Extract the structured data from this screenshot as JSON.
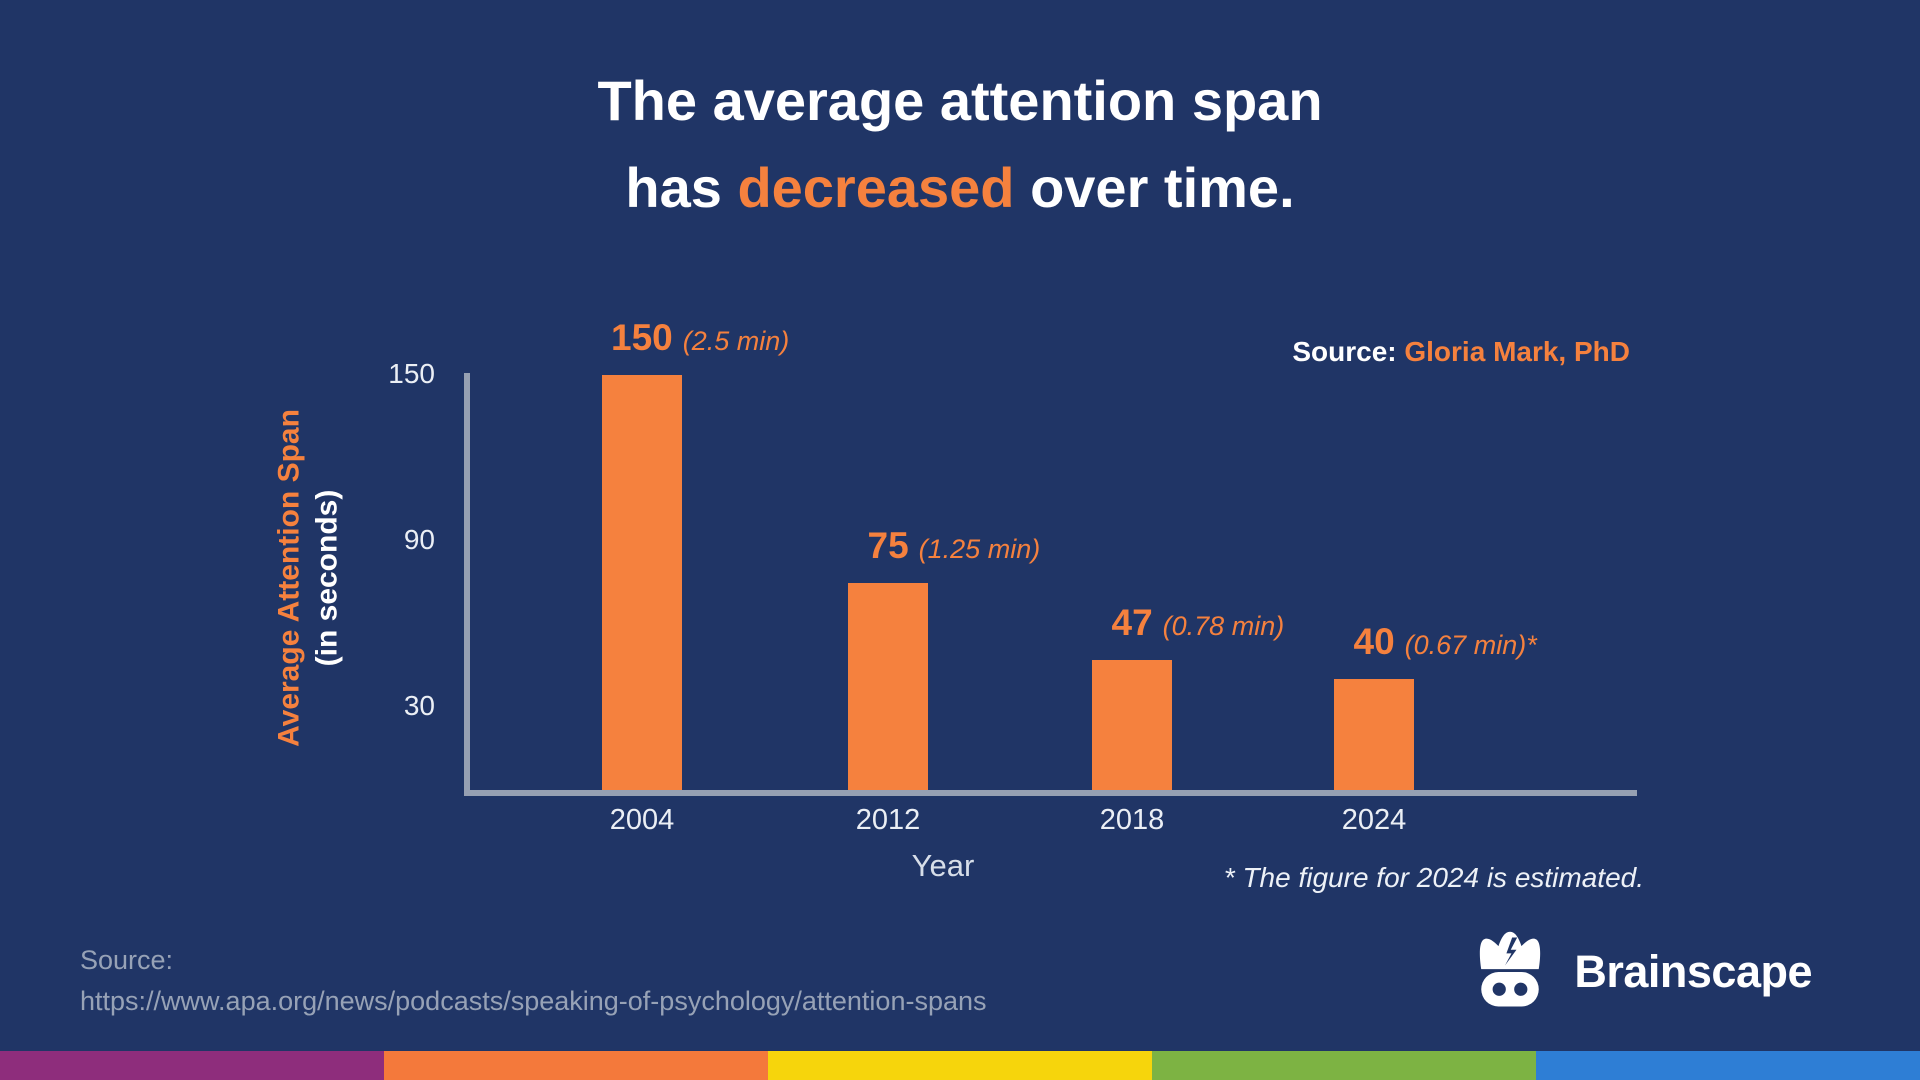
{
  "header": {
    "line1": "The average attention span",
    "line2_prefix": "has ",
    "line2_highlight": "decreased",
    "line2_suffix": " over time."
  },
  "source_credit": {
    "label": "Source:",
    "name": "Gloria Mark, PhD"
  },
  "chart_data": {
    "type": "bar",
    "categories": [
      "2004",
      "2012",
      "2018",
      "2024"
    ],
    "values": [
      150,
      75,
      47,
      40
    ],
    "value_labels": [
      "150",
      "75",
      "47",
      "40"
    ],
    "value_notes": [
      "(2.5 min)",
      "(1.25 min)",
      "(0.78 min)",
      "(0.67 min)*"
    ],
    "xlabel": "Year",
    "ylabel_main": "Average Attention Span",
    "ylabel_sub": "(in seconds)",
    "yticks": [
      150,
      90,
      30
    ],
    "ylim": [
      0,
      150
    ],
    "grid": false,
    "legend": false,
    "bar_color": "#F5813E",
    "axis_color": "#96A0B2"
  },
  "footnote": "* The figure for 2024 is estimated.",
  "bottom_source": {
    "label": "Source:",
    "url": "https://www.apa.org/news/podcasts/speaking-of-psychology/attention-spans"
  },
  "brand": {
    "name": "Brainscape"
  },
  "colors": {
    "background": "#203566",
    "accent_orange": "#F5813E",
    "stripe": [
      "#8E2D7C",
      "#F4793B",
      "#F6D50C",
      "#7DB343",
      "#2E7ED5"
    ]
  }
}
